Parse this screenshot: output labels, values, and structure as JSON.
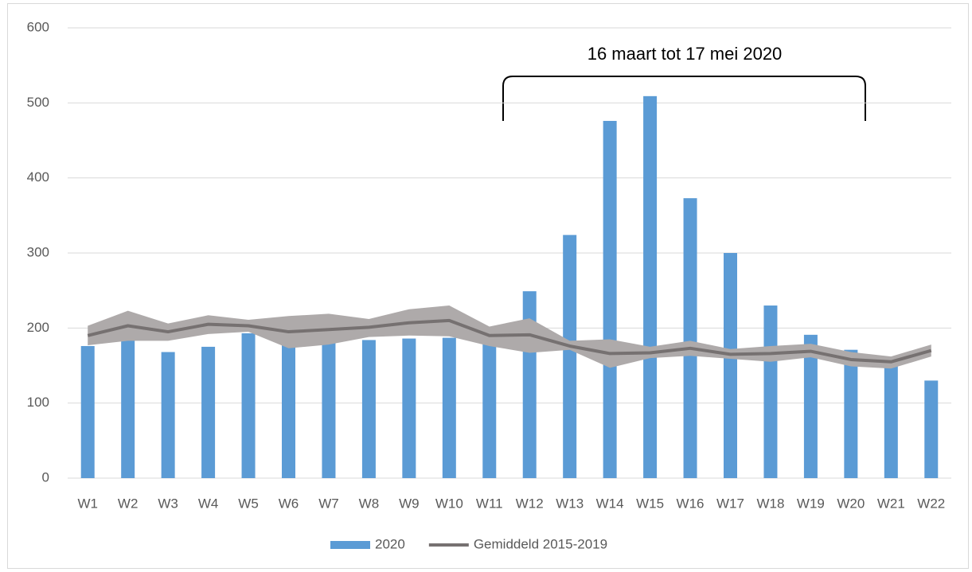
{
  "chart_data": {
    "type": "bar",
    "annotation": "16 maart tot 17 mei 2020",
    "categories": [
      "W1",
      "W2",
      "W3",
      "W4",
      "W5",
      "W6",
      "W7",
      "W8",
      "W9",
      "W10",
      "W11",
      "W12",
      "W13",
      "W14",
      "W15",
      "W16",
      "W17",
      "W18",
      "W19",
      "W20",
      "W21",
      "W22"
    ],
    "series": [
      {
        "name": "2020",
        "type": "bar",
        "color": "#5b9bd5",
        "values": [
          176,
          184,
          168,
          175,
          193,
          187,
          190,
          184,
          186,
          187,
          187,
          249,
          324,
          476,
          509,
          373,
          300,
          230,
          191,
          171,
          155,
          130
        ]
      },
      {
        "name": "Gemiddeld 2015-2019",
        "type": "line",
        "color": "#767171",
        "values": [
          190,
          203,
          195,
          205,
          203,
          195,
          198,
          201,
          207,
          210,
          190,
          191,
          176,
          166,
          167,
          173,
          165,
          166,
          169,
          158,
          155,
          170
        ],
        "band": {
          "color": "#aeaaaa",
          "upper": [
            203,
            223,
            206,
            217,
            211,
            216,
            219,
            212,
            225,
            230,
            202,
            213,
            183,
            185,
            175,
            183,
            172,
            176,
            179,
            168,
            162,
            178
          ],
          "lower": [
            177,
            183,
            183,
            192,
            195,
            173,
            178,
            188,
            190,
            189,
            176,
            167,
            171,
            147,
            160,
            163,
            159,
            155,
            161,
            149,
            146,
            162
          ]
        }
      }
    ],
    "ylim": [
      0,
      600
    ],
    "yticks": [
      0,
      100,
      200,
      300,
      400,
      500,
      600
    ],
    "grid": true,
    "legend": "bottom"
  }
}
